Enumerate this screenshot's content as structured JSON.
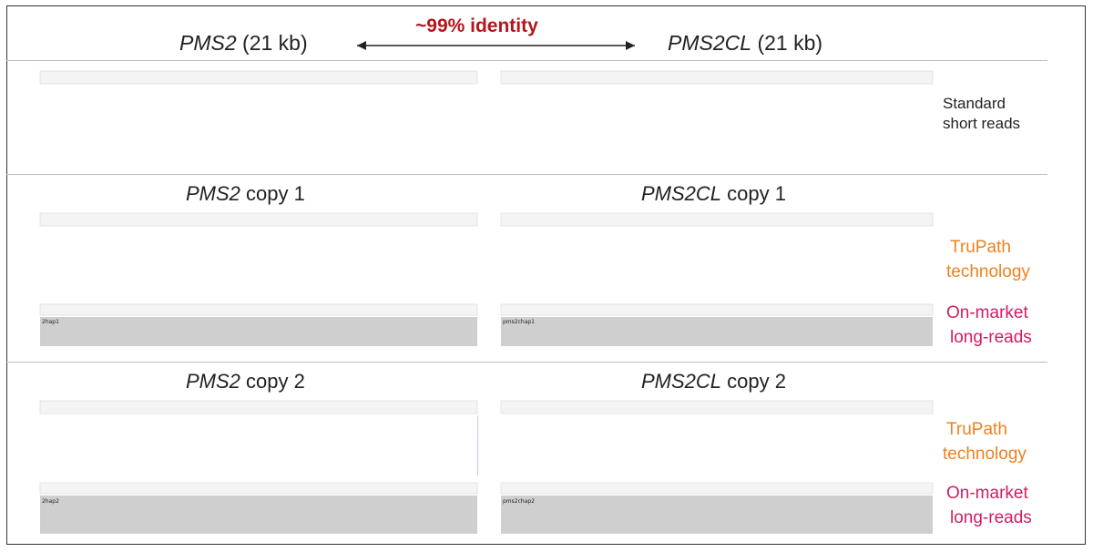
{
  "header": {
    "left_gene": "PMS2",
    "left_size": "(21 kb)",
    "right_gene": "PMS2CL",
    "right_size": "(21 kb)",
    "identity": "~99% identity"
  },
  "sections": {
    "short": {
      "label_line1": "Standard",
      "label_line2": "short reads"
    },
    "copy1": {
      "left_title_gene": "PMS2",
      "left_title_rest": "copy 1",
      "right_title_gene": "PMS2CL",
      "right_title_rest": "copy 1",
      "trupath_line1": "TruPath",
      "trupath_line2": "technology",
      "longread_line1": "On-market",
      "longread_line2": "long-reads",
      "left_track_tag": "2hap1",
      "right_track_tag": "pms2chap1"
    },
    "copy2": {
      "left_title_gene": "PMS2",
      "left_title_rest": "copy 2",
      "right_title_gene": "PMS2CL",
      "right_title_rest": "copy 2",
      "trupath_line1": "TruPath",
      "trupath_line2": "technology",
      "longread_line1": "On-market",
      "longread_line2": "long-reads",
      "left_track_tag": "2hap2",
      "right_track_tag": "pms2chap2"
    }
  },
  "colors": {
    "identity": "#b5151b",
    "trupath": "#f0801c",
    "longread": "#d31c63",
    "variant_orange": "#f7931e",
    "variant_blue": "#1f1fd6",
    "read_gray": "#c8c8c8"
  },
  "icons": {
    "arrow": "double-headed-arrow-icon"
  }
}
